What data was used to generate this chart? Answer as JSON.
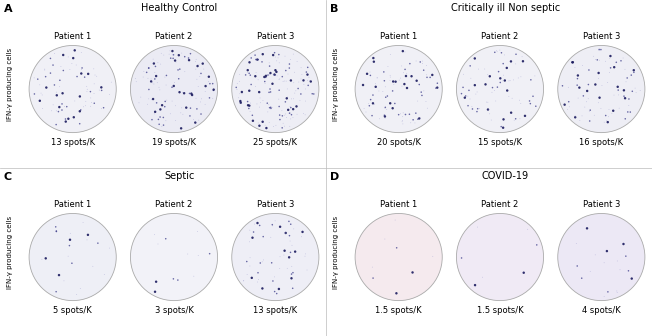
{
  "panels": [
    {
      "label": "A",
      "title": "Healthy Control",
      "patients": [
        "Patient 1",
        "Patient 2",
        "Patient 3"
      ],
      "spots": [
        "13 spots/K",
        "19 spots/K",
        "25 spots/K"
      ],
      "spot_counts": [
        13,
        19,
        25
      ],
      "well_bg": [
        "#f0f0f6",
        "#ebebf4",
        "#eeeef5"
      ],
      "spot_display": [
        80,
        120,
        160
      ]
    },
    {
      "label": "B",
      "title": "Critically ill Non septic",
      "patients": [
        "Patient 1",
        "Patient 2",
        "Patient 3"
      ],
      "spots": [
        "20 spots/K",
        "15 spots/K",
        "16 spots/K"
      ],
      "spot_counts": [
        20,
        15,
        16
      ],
      "well_bg": [
        "#f0f0f6",
        "#f0f0f6",
        "#eeeef5"
      ],
      "spot_display": [
        100,
        80,
        85
      ]
    },
    {
      "label": "C",
      "title": "Septic",
      "patients": [
        "Patient 1",
        "Patient 2",
        "Patient 3"
      ],
      "spots": [
        "5 spots/K",
        "3 spots/K",
        "13 spots/K"
      ],
      "spot_counts": [
        5,
        3,
        13
      ],
      "well_bg": [
        "#eeeff6",
        "#f2f2f8",
        "#eeeef6"
      ],
      "spot_display": [
        22,
        12,
        60
      ]
    },
    {
      "label": "D",
      "title": "COVID-19",
      "patients": [
        "Patient 1",
        "Patient 2",
        "Patient 3"
      ],
      "spots": [
        "1.5 spots/K",
        "1.5 spots/K",
        "4 spots/K"
      ],
      "spot_counts": [
        1.5,
        1.5,
        4
      ],
      "well_bg": [
        "#f5eaee",
        "#f0eaf5",
        "#ece8f5"
      ],
      "spot_display": [
        8,
        8,
        18
      ]
    }
  ],
  "figure_bg": "#ffffff",
  "spot_color_dark": "#1a1a5e",
  "spot_color_med": "#3a3a88",
  "spot_color_light": "#9999cc",
  "ylabel": "IFN-γ producing cells"
}
